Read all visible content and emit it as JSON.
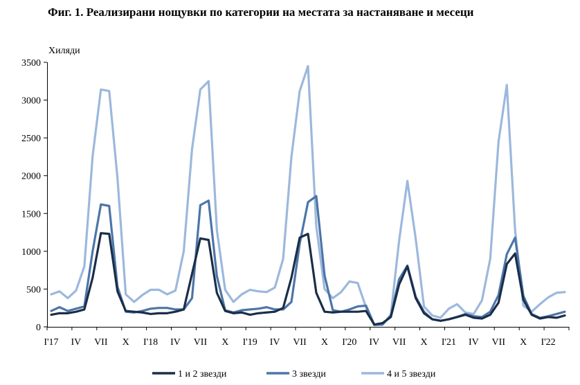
{
  "title": "Фиг. 1. Реализирани нощувки по категории на местата за настаняване и месеци",
  "chart_data": {
    "type": "line",
    "ylabel": "Хиляди",
    "ylim": [
      0,
      3500
    ],
    "yticks": [
      0,
      500,
      1000,
      1500,
      2000,
      2500,
      3000,
      3500
    ],
    "x": [
      "2017-01",
      "2017-02",
      "2017-03",
      "2017-04",
      "2017-05",
      "2017-06",
      "2017-07",
      "2017-08",
      "2017-09",
      "2017-10",
      "2017-11",
      "2017-12",
      "2018-01",
      "2018-02",
      "2018-03",
      "2018-04",
      "2018-05",
      "2018-06",
      "2018-07",
      "2018-08",
      "2018-09",
      "2018-10",
      "2018-11",
      "2018-12",
      "2019-01",
      "2019-02",
      "2019-03",
      "2019-04",
      "2019-05",
      "2019-06",
      "2019-07",
      "2019-08",
      "2019-09",
      "2019-10",
      "2019-11",
      "2019-12",
      "2020-01",
      "2020-02",
      "2020-03",
      "2020-04",
      "2020-05",
      "2020-06",
      "2020-07",
      "2020-08",
      "2020-09",
      "2020-10",
      "2020-11",
      "2020-12",
      "2021-01",
      "2021-02",
      "2021-03",
      "2021-04",
      "2021-05",
      "2021-06",
      "2021-07",
      "2021-08",
      "2021-09",
      "2021-10",
      "2021-11",
      "2021-12",
      "2022-01",
      "2022-02",
      "2022-03"
    ],
    "tick_labels": [
      "I'17",
      "IV",
      "VII",
      "X",
      "I'18",
      "IV",
      "VII",
      "X",
      "I'19",
      "IV",
      "VII",
      "X",
      "I'20",
      "IV",
      "VII",
      "X",
      "I'21",
      "IV",
      "VII",
      "X",
      "I'22"
    ],
    "grid": false,
    "legend_position": "bottom",
    "series": [
      {
        "name": "1 и 2 звезди",
        "color": "#1a2e48",
        "values": [
          160,
          180,
          180,
          200,
          230,
          650,
          1240,
          1230,
          470,
          210,
          200,
          190,
          170,
          180,
          180,
          200,
          230,
          700,
          1170,
          1150,
          450,
          210,
          180,
          190,
          160,
          180,
          190,
          200,
          250,
          650,
          1180,
          1230,
          450,
          200,
          190,
          200,
          200,
          200,
          210,
          30,
          50,
          130,
          560,
          800,
          380,
          180,
          100,
          80,
          100,
          130,
          160,
          120,
          110,
          160,
          320,
          830,
          970,
          360,
          160,
          110,
          130,
          120,
          150
        ]
      },
      {
        "name": "3 звезди",
        "color": "#4d75a8",
        "values": [
          210,
          260,
          210,
          240,
          270,
          1000,
          1620,
          1600,
          530,
          200,
          190,
          210,
          240,
          250,
          250,
          230,
          230,
          380,
          1610,
          1670,
          670,
          220,
          190,
          220,
          230,
          240,
          260,
          230,
          230,
          330,
          1100,
          1650,
          1730,
          680,
          220,
          200,
          230,
          270,
          280,
          30,
          30,
          150,
          630,
          810,
          400,
          200,
          100,
          80,
          100,
          130,
          170,
          140,
          130,
          200,
          420,
          960,
          1180,
          410,
          170,
          120,
          140,
          170,
          200
        ]
      },
      {
        "name": "4 и 5 звезди",
        "color": "#9cb8dc",
        "values": [
          430,
          470,
          380,
          480,
          800,
          2260,
          3140,
          3120,
          1970,
          430,
          330,
          420,
          490,
          490,
          430,
          480,
          1000,
          2350,
          3140,
          3250,
          1280,
          490,
          330,
          430,
          490,
          470,
          460,
          520,
          900,
          2250,
          3120,
          3450,
          1330,
          500,
          380,
          460,
          600,
          580,
          260,
          20,
          30,
          160,
          1140,
          1930,
          1170,
          270,
          150,
          120,
          240,
          300,
          190,
          170,
          350,
          900,
          2450,
          3200,
          1280,
          280,
          200,
          300,
          390,
          450,
          460
        ]
      }
    ]
  }
}
